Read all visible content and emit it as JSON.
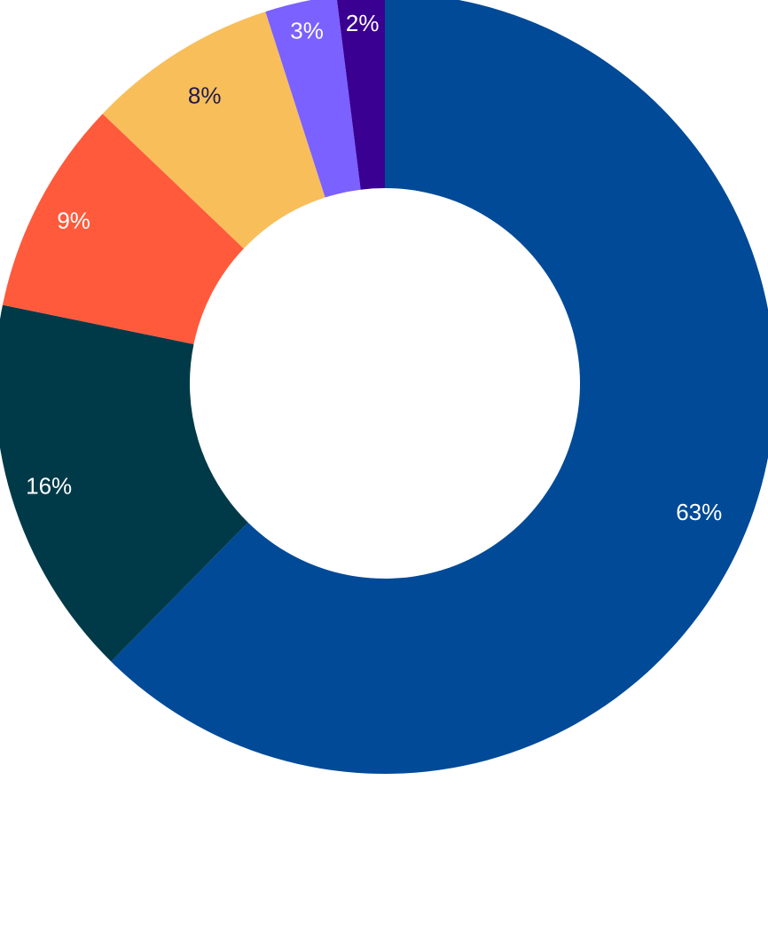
{
  "chart_data": {
    "type": "pie",
    "variant": "donut",
    "title": "",
    "legend": "none",
    "start_angle": "12 o'clock",
    "direction": "clockwise",
    "slices": [
      {
        "value": 63,
        "label": "63%",
        "color": "#004A98",
        "label_color": "#FFFFFF"
      },
      {
        "value": 16,
        "label": "16%",
        "color": "#003A48",
        "label_color": "#FFFFFF"
      },
      {
        "value": 9,
        "label": "9%",
        "color": "#FF5A3C",
        "label_color": "#FFFFFF"
      },
      {
        "value": 8,
        "label": "8%",
        "color": "#F8BE5A",
        "label_color": "#1E1B4B"
      },
      {
        "value": 3,
        "label": "3%",
        "color": "#7B61FF",
        "label_color": "#FFFFFF"
      },
      {
        "value": 2,
        "label": "2%",
        "color": "#3A0092",
        "label_color": "#FFFFFF"
      }
    ]
  }
}
